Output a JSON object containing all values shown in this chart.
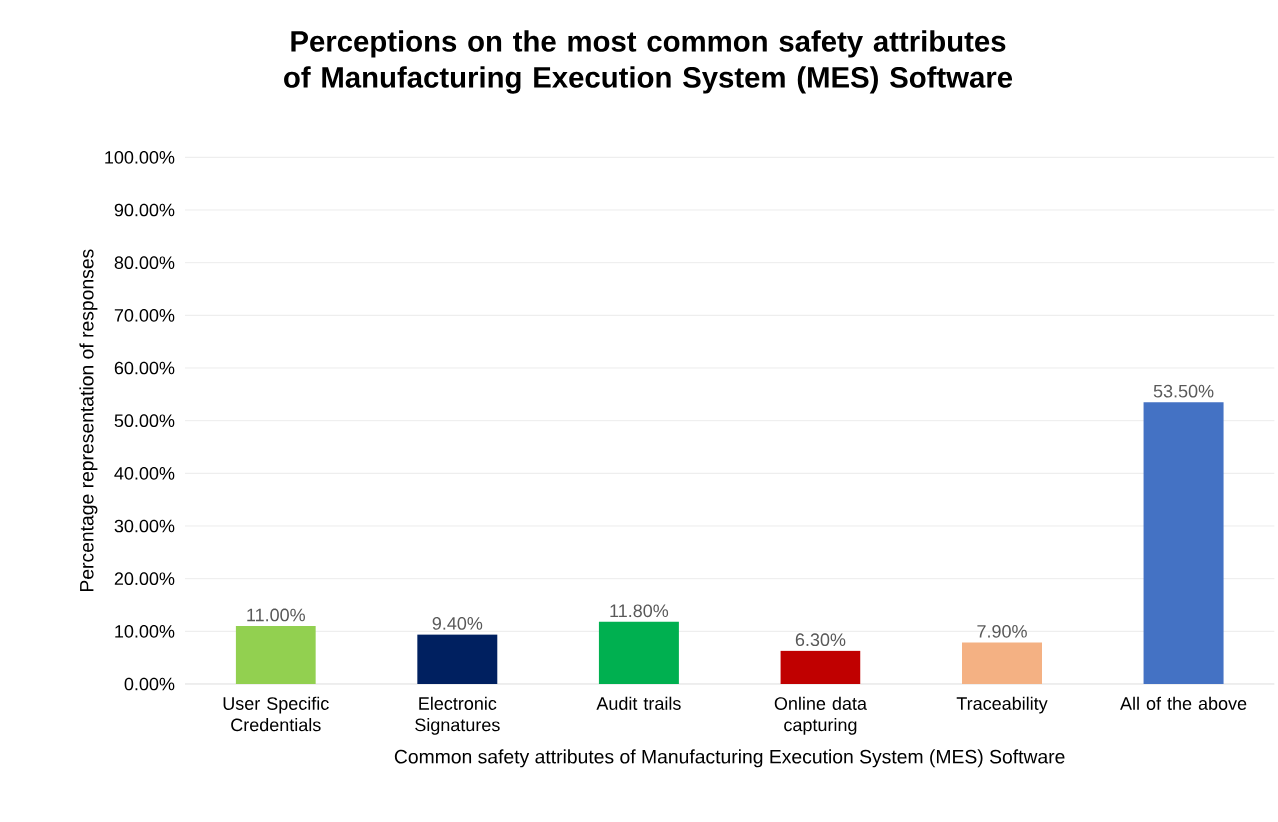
{
  "chart_data": {
    "type": "bar",
    "title": "Perceptions on the most common safety attributes of Manufacturing Execution System (MES) Software",
    "xlabel": "Common safety attributes of Manufacturing Execution System (MES) Software",
    "ylabel": "Percentage representation of responses",
    "categories": [
      "User Specific Credentials",
      "Electronic Signatures",
      "Audit trails",
      "Online data capturing",
      "Traceability",
      "All of the above"
    ],
    "values": [
      11.0,
      9.4,
      11.8,
      6.3,
      7.9,
      53.5
    ],
    "colors": [
      "#92d050",
      "#002060",
      "#00b050",
      "#c00000",
      "#f4b183",
      "#4472c4"
    ],
    "value_labels": [
      "11.00%",
      "9.40%",
      "11.80%",
      "6.30%",
      "7.90%",
      "53.50%"
    ],
    "ylim": [
      0,
      100
    ],
    "yticks": [
      {
        "value": 0,
        "label": "0.00%"
      },
      {
        "value": 10,
        "label": "10.00%"
      },
      {
        "value": 20,
        "label": "20.00%"
      },
      {
        "value": 30,
        "label": "30.00%"
      },
      {
        "value": 40,
        "label": "40.00%"
      },
      {
        "value": 50,
        "label": "50.00%"
      },
      {
        "value": 60,
        "label": "60.00%"
      },
      {
        "value": 70,
        "label": "70.00%"
      },
      {
        "value": 80,
        "label": "80.00%"
      },
      {
        "value": 90,
        "label": "90.00%"
      },
      {
        "value": 100,
        "label": "100.00%"
      }
    ],
    "grid": "y"
  }
}
